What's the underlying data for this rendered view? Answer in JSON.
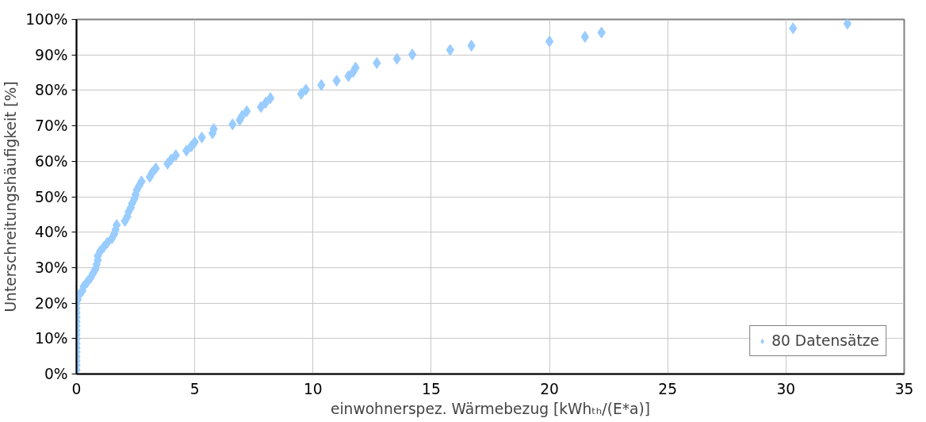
{
  "chart_data": {
    "type": "scatter",
    "xlabel": "einwohnerspez. Wärmebezug [kWhₜₕ/(E*a)]",
    "ylabel": "Unterschreitungshäufigkeit [%]",
    "x": [
      0,
      0,
      0,
      0,
      0,
      0,
      0,
      0,
      0,
      0,
      0,
      0,
      0,
      0,
      0,
      0,
      0.05,
      0.1,
      0.25,
      0.3,
      0.45,
      0.6,
      0.7,
      0.8,
      0.85,
      0.9,
      0.9,
      1.0,
      1.15,
      1.3,
      1.5,
      1.6,
      1.65,
      1.7,
      2.05,
      2.15,
      2.2,
      2.3,
      2.35,
      2.45,
      2.5,
      2.55,
      2.65,
      2.75,
      3.1,
      3.2,
      3.35,
      3.85,
      4.0,
      4.2,
      4.65,
      4.85,
      5.0,
      5.3,
      5.75,
      5.8,
      6.6,
      6.9,
      7.0,
      7.2,
      7.8,
      8.0,
      8.2,
      9.5,
      9.7,
      10.35,
      11.0,
      11.5,
      11.7,
      11.8,
      12.7,
      13.55,
      14.2,
      15.8,
      16.7,
      20.0,
      21.5,
      22.2,
      30.3,
      32.6
    ],
    "series": [
      {
        "name": "80 Datensätze",
        "color": "#99ccff",
        "values": [
          1.2,
          2.5,
          3.7,
          4.9,
          6.2,
          7.4,
          8.6,
          9.9,
          11.1,
          12.3,
          13.6,
          14.8,
          16.0,
          17.3,
          18.5,
          19.8,
          21.0,
          22.2,
          23.5,
          24.7,
          25.9,
          27.2,
          28.4,
          29.6,
          30.9,
          32.1,
          33.3,
          34.6,
          35.8,
          37.0,
          38.3,
          39.5,
          40.7,
          42.0,
          43.2,
          44.4,
          45.7,
          46.9,
          48.1,
          49.4,
          50.6,
          51.9,
          53.1,
          54.3,
          55.6,
          56.8,
          58.0,
          59.3,
          60.5,
          61.7,
          63.0,
          64.2,
          65.4,
          66.7,
          67.9,
          69.1,
          70.4,
          71.6,
          72.8,
          74.1,
          75.3,
          76.5,
          77.8,
          79.0,
          80.2,
          81.5,
          82.7,
          84.0,
          85.2,
          86.4,
          87.7,
          88.9,
          90.1,
          91.4,
          92.6,
          93.8,
          95.1,
          96.3,
          97.5,
          98.8
        ]
      }
    ],
    "xlim": [
      0,
      35
    ],
    "xticks": [
      0,
      5,
      10,
      15,
      20,
      25,
      30,
      35
    ],
    "ylim": [
      0,
      100
    ],
    "yticks": [
      {
        "value": 0,
        "label": "0%"
      },
      {
        "value": 10,
        "label": "10%"
      },
      {
        "value": 20,
        "label": "20%"
      },
      {
        "value": 30,
        "label": "30%"
      },
      {
        "value": 40,
        "label": "40%"
      },
      {
        "value": 50,
        "label": "50%"
      },
      {
        "value": 60,
        "label": "60%"
      },
      {
        "value": 70,
        "label": "70%"
      },
      {
        "value": 80,
        "label": "80%"
      },
      {
        "value": 90,
        "label": "90%"
      },
      {
        "value": 100,
        "label": "100%"
      }
    ],
    "grid": true,
    "legend": "bottom right",
    "marker": "diamond"
  }
}
